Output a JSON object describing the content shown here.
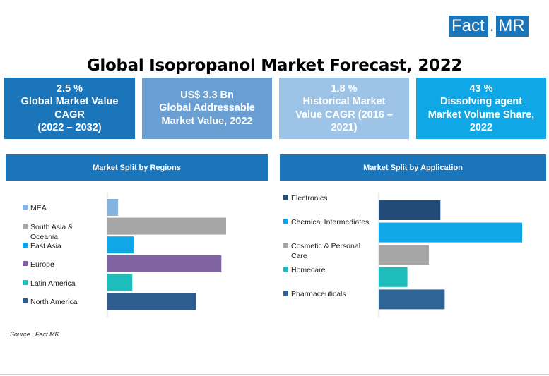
{
  "logo": {
    "part1": "Fact",
    "dot": ".",
    "part2": "MR"
  },
  "title": "Global Isopropanol Market Forecast, 2022",
  "kpis": [
    {
      "lines": [
        "2.5 %",
        "Global Market Value",
        "CAGR",
        "(2022 – 2032)"
      ],
      "color": "#1b75bb"
    },
    {
      "lines": [
        "US$ 3.3 Bn",
        "Global Addressable",
        "Market Value, 2022"
      ],
      "color": "#6a9fd4"
    },
    {
      "lines": [
        "1.8 %",
        "Historical Market",
        "Value CAGR (2016 –",
        "2021)"
      ],
      "color": "#9dc3e6"
    },
    {
      "lines": [
        "43 %",
        "Dissolving agent",
        "Market Volume Share,",
        "2022"
      ],
      "color": "#0fa7e6"
    }
  ],
  "chart_data": [
    {
      "type": "bar",
      "orientation": "horizontal",
      "title": "Market Split by Regions",
      "categories": [
        "MEA",
        "South Asia & Oceania",
        "East Asia",
        "Europe",
        "Latin America",
        "North America"
      ],
      "values": [
        9,
        100,
        22,
        96,
        21,
        75
      ],
      "colors": [
        "#85b3e0",
        "#a6a6a6",
        "#0fa7e6",
        "#8064a2",
        "#1fbcbc",
        "#2f5c8f"
      ],
      "xlim": [
        0,
        100
      ],
      "legend": "left"
    },
    {
      "type": "bar",
      "orientation": "horizontal",
      "title": "Market Split by Application",
      "categories": [
        "Electronics",
        "Chemical Intermediates",
        "Cosmetic & Personal Care",
        "Homecare",
        "Pharmaceuticals"
      ],
      "values": [
        43,
        100,
        35,
        20,
        46
      ],
      "colors": [
        "#234b78",
        "#0fa7e6",
        "#a6a6a6",
        "#1fbcbc",
        "#2f6496"
      ],
      "xlim": [
        0,
        100
      ],
      "legend": "left"
    }
  ],
  "source": "Source : Fact.MR"
}
